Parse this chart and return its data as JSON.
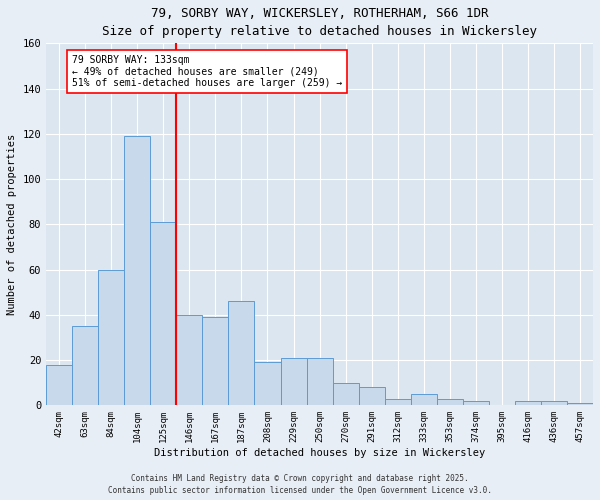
{
  "title_line1": "79, SORBY WAY, WICKERSLEY, ROTHERHAM, S66 1DR",
  "title_line2": "Size of property relative to detached houses in Wickersley",
  "xlabel": "Distribution of detached houses by size in Wickersley",
  "ylabel": "Number of detached properties",
  "categories": [
    "42sqm",
    "63sqm",
    "84sqm",
    "104sqm",
    "125sqm",
    "146sqm",
    "167sqm",
    "187sqm",
    "208sqm",
    "229sqm",
    "250sqm",
    "270sqm",
    "291sqm",
    "312sqm",
    "333sqm",
    "353sqm",
    "374sqm",
    "395sqm",
    "416sqm",
    "436sqm",
    "457sqm"
  ],
  "values": [
    18,
    35,
    60,
    119,
    81,
    40,
    39,
    46,
    19,
    21,
    21,
    10,
    8,
    3,
    5,
    3,
    2,
    0,
    2,
    2,
    1
  ],
  "bar_color": "#c8d9eb",
  "bar_edge_color": "#5b9bd5",
  "red_line_x": 4.5,
  "annotation_line1": "79 SORBY WAY: 133sqm",
  "annotation_line2": "← 49% of detached houses are smaller (249)",
  "annotation_line3": "51% of semi-detached houses are larger (259) →",
  "ylim": [
    0,
    160
  ],
  "yticks": [
    0,
    20,
    40,
    60,
    80,
    100,
    120,
    140,
    160
  ],
  "background_color": "#dce6f0",
  "fig_background_color": "#e8eef5",
  "footer_line1": "Contains HM Land Registry data © Crown copyright and database right 2025.",
  "footer_line2": "Contains public sector information licensed under the Open Government Licence v3.0."
}
